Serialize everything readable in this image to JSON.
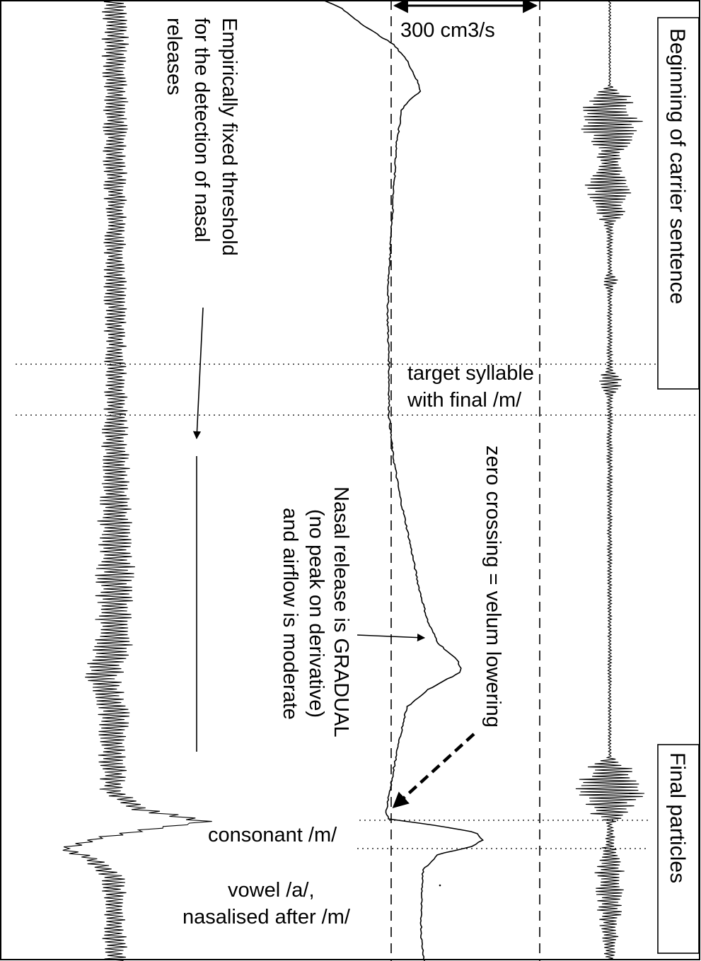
{
  "chart_data": {
    "type": "line",
    "title": "",
    "orientation": "rotated 90 degrees clockwise; time runs top to bottom",
    "grid": false,
    "axes_visible": false,
    "scale_bar": {
      "label": "300 cm3/s",
      "value": 300,
      "unit": "cm3/s"
    },
    "series": [
      {
        "role": "derivative_of_nasal_airflow",
        "style": "dense oscillating black waveform"
      },
      {
        "role": "nasal_airflow",
        "style": "thin solid line",
        "note": "gradual rise and peak before the consonant, sharp dip at consonant onset, bump during the consonant"
      },
      {
        "role": "acoustic_signal",
        "style": "dense black oscillogram with bursts"
      }
    ],
    "reference_lines": [
      {
        "style": "solid",
        "meaning": "empirically fixed threshold"
      },
      {
        "style": "dashed",
        "meaning": "airflow baseline"
      },
      {
        "style": "dashed",
        "meaning": "300 cm3/s level"
      }
    ],
    "boundaries": [
      "target syllable start",
      "target syllable end",
      "consonant start",
      "consonant end"
    ]
  },
  "labels": {
    "carrier_box": "Beginning of carrier sentence",
    "final_box": "Final particles",
    "scale": "300 cm3/s",
    "target_line1": "target syllable",
    "target_line2": "with final /m/",
    "zero_crossing": "zero crossing = velum lowering",
    "threshold_line1": "Empirically fixed threshold",
    "threshold_line2": "for the detection of nasal",
    "threshold_line3": "releases",
    "release_line1": "Nasal release is GRADUAL",
    "release_line2": "(no peak on derivative)",
    "release_line3": "and airflow is moderate",
    "consonant": "consonant /m/",
    "vowel_line1": "vowel /a/,",
    "vowel_line2": "nasalised after /m/"
  },
  "colors": {
    "ink": "#000000",
    "background": "#ffffff"
  }
}
